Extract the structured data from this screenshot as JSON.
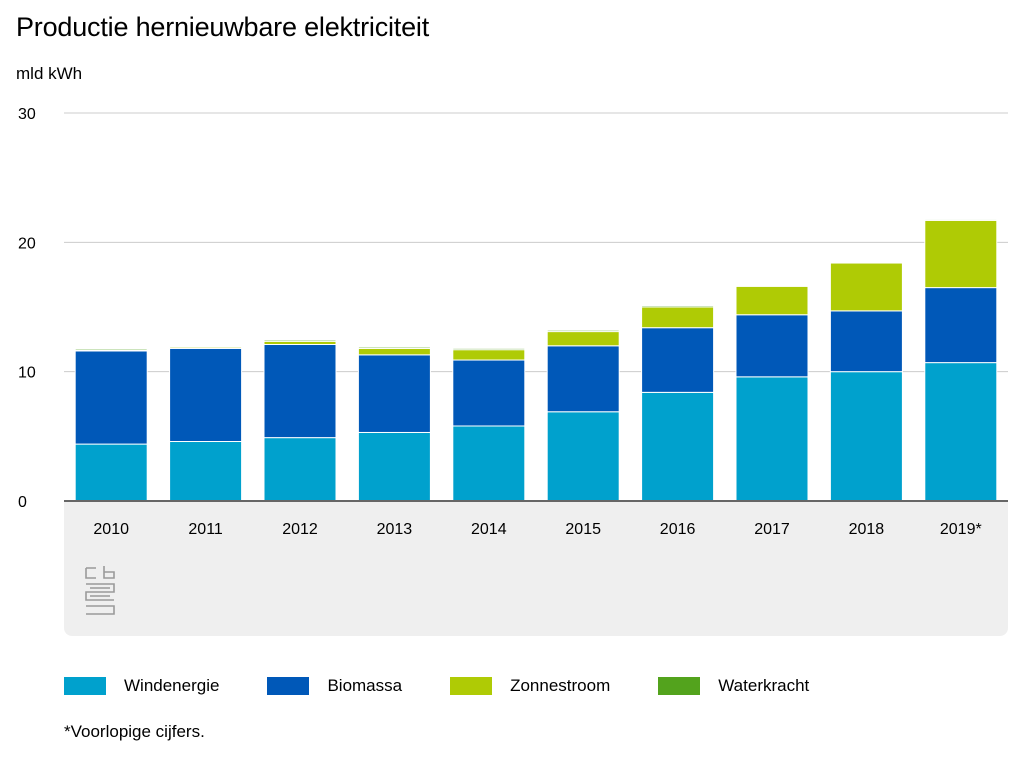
{
  "chart_data": {
    "type": "bar",
    "stacked": true,
    "title": "Productie hernieuwbare elektriciteit",
    "ylabel": "mld kWh",
    "xlabel": "",
    "ylim": [
      0,
      30
    ],
    "yticks": [
      0,
      10,
      20,
      30
    ],
    "grid": true,
    "legend_position": "bottom",
    "categories": [
      "2010",
      "2011",
      "2012",
      "2013",
      "2014",
      "2015",
      "2016",
      "2017",
      "2018",
      "2019*"
    ],
    "series": [
      {
        "name": "Windenergie",
        "color": "#00a1cd",
        "values": [
          4.4,
          4.6,
          4.9,
          5.3,
          5.8,
          6.9,
          8.4,
          9.6,
          10.0,
          10.7
        ]
      },
      {
        "name": "Biomassa",
        "color": "#0058b8",
        "values": [
          7.2,
          7.2,
          7.2,
          6.0,
          5.1,
          5.1,
          5.0,
          4.8,
          4.7,
          5.8
        ]
      },
      {
        "name": "Zonnestroom",
        "color": "#afcb05",
        "values": [
          0.05,
          0.1,
          0.25,
          0.5,
          0.8,
          1.1,
          1.6,
          2.2,
          3.7,
          5.2
        ]
      },
      {
        "name": "Waterkracht",
        "color": "#53a31d",
        "values": [
          0.1,
          0.06,
          0.1,
          0.1,
          0.1,
          0.1,
          0.1,
          0.06,
          0.07,
          0.08
        ]
      }
    ]
  },
  "footnote": "*Voorlopige cijfers."
}
